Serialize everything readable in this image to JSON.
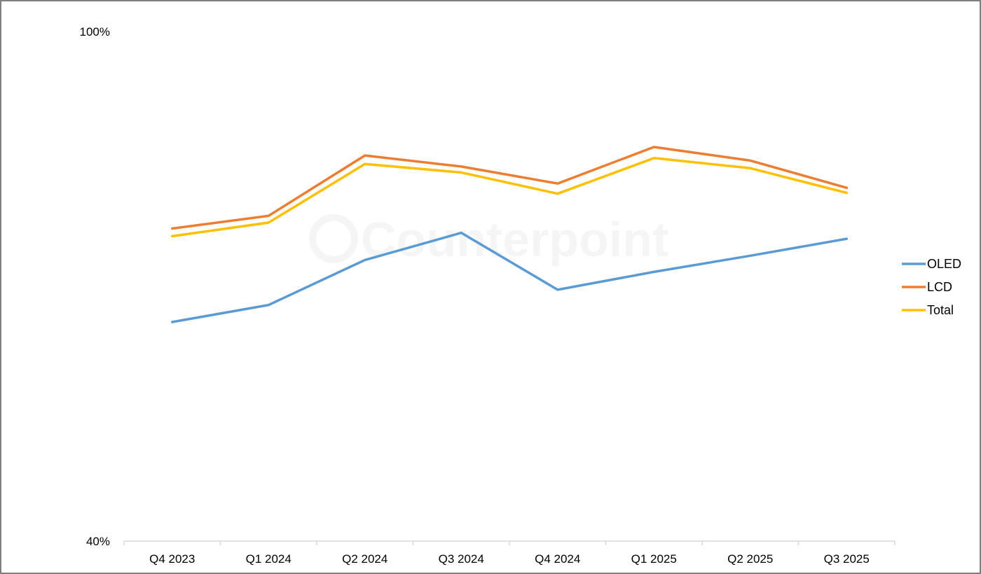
{
  "watermark": {
    "text": "Counterpoint"
  },
  "chart_data": {
    "type": "line",
    "title": "",
    "xlabel": "",
    "ylabel": "",
    "ylim": [
      40,
      100
    ],
    "y_tick_labels": [
      "100%",
      "40%"
    ],
    "categories": [
      "Q4 2023",
      "Q1 2024",
      "Q2 2024",
      "Q3 2024",
      "Q4 2024",
      "Q1 2025",
      "Q2 2025",
      "Q3 2025"
    ],
    "series": [
      {
        "name": "OLED",
        "color": "#5b9bd5",
        "values": [
          65.8,
          67.8,
          73.1,
          76.3,
          69.6,
          71.7,
          73.6,
          75.6
        ]
      },
      {
        "name": "LCD",
        "color": "#ed7d31",
        "values": [
          76.8,
          78.3,
          85.4,
          84.1,
          82.1,
          86.4,
          84.8,
          81.6
        ]
      },
      {
        "name": "Total",
        "color": "#ffc000",
        "values": [
          75.9,
          77.5,
          84.4,
          83.4,
          80.9,
          85.1,
          83.9,
          81.0
        ]
      }
    ],
    "grid": false,
    "legend_position": "right"
  }
}
